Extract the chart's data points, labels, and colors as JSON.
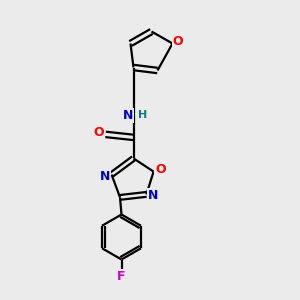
{
  "background_color": "#ebebeb",
  "bond_color": "#000000",
  "atom_colors": {
    "O": "#ff0000",
    "N": "#0000cc",
    "F": "#cc00cc",
    "H": "#008080",
    "C": "#000000"
  },
  "figsize": [
    3.0,
    3.0
  ],
  "dpi": 100
}
